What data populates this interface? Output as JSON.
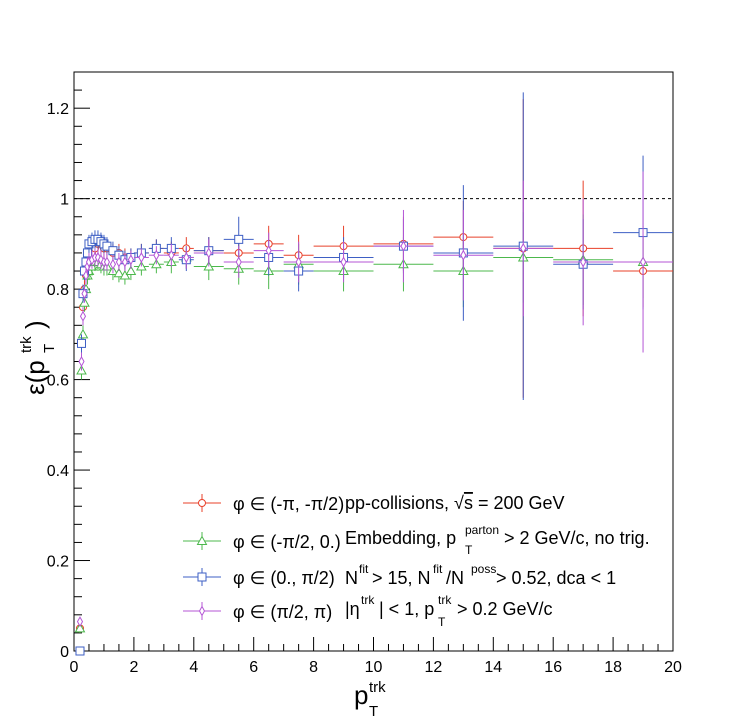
{
  "chart_data": {
    "type": "scatter",
    "xlabel": "p",
    "xlabel_sup": "trk",
    "xlabel_sub": "T",
    "ylabel_prefix": "ε(p",
    "ylabel_sup": "trk",
    "ylabel_sub": "T",
    "ylabel_suffix": ")",
    "xlim": [
      0,
      20
    ],
    "ylim": [
      0,
      1.28
    ],
    "xticks": [
      0,
      2,
      4,
      6,
      8,
      10,
      12,
      14,
      16,
      18,
      20
    ],
    "yticks": [
      0,
      0.2,
      0.4,
      0.6,
      0.8,
      1,
      1.2
    ],
    "xtick_labels": [
      "0",
      "2",
      "4",
      "6",
      "8",
      "10",
      "12",
      "14",
      "16",
      "18",
      "20"
    ],
    "ytick_labels": [
      "0",
      "0.2",
      "0.4",
      "0.6",
      "0.8",
      "1",
      "1.2"
    ],
    "reference_line": 1,
    "legend_position": "bottom-center",
    "series": [
      {
        "name": "φ ∈ (-π, -π/2)",
        "color": "#e8402a",
        "marker": "circle",
        "points": [
          {
            "x": 0.2,
            "y": 0.05,
            "xerr": 0.05,
            "yerr": 0.01
          },
          {
            "x": 0.25,
            "y": 0.68,
            "xerr": 0.025,
            "yerr": 0.02
          },
          {
            "x": 0.3,
            "y": 0.76,
            "xerr": 0.025,
            "yerr": 0.02
          },
          {
            "x": 0.35,
            "y": 0.8,
            "xerr": 0.025,
            "yerr": 0.02
          },
          {
            "x": 0.4,
            "y": 0.83,
            "xerr": 0.025,
            "yerr": 0.02
          },
          {
            "x": 0.45,
            "y": 0.85,
            "xerr": 0.025,
            "yerr": 0.02
          },
          {
            "x": 0.5,
            "y": 0.87,
            "xerr": 0.025,
            "yerr": 0.02
          },
          {
            "x": 0.6,
            "y": 0.88,
            "xerr": 0.05,
            "yerr": 0.02
          },
          {
            "x": 0.7,
            "y": 0.89,
            "xerr": 0.05,
            "yerr": 0.02
          },
          {
            "x": 0.8,
            "y": 0.9,
            "xerr": 0.05,
            "yerr": 0.02
          },
          {
            "x": 0.9,
            "y": 0.9,
            "xerr": 0.05,
            "yerr": 0.02
          },
          {
            "x": 1.0,
            "y": 0.89,
            "xerr": 0.05,
            "yerr": 0.02
          },
          {
            "x": 1.1,
            "y": 0.89,
            "xerr": 0.05,
            "yerr": 0.02
          },
          {
            "x": 1.3,
            "y": 0.88,
            "xerr": 0.1,
            "yerr": 0.02
          },
          {
            "x": 1.5,
            "y": 0.88,
            "xerr": 0.1,
            "yerr": 0.02
          },
          {
            "x": 1.7,
            "y": 0.87,
            "xerr": 0.1,
            "yerr": 0.02
          },
          {
            "x": 1.9,
            "y": 0.87,
            "xerr": 0.1,
            "yerr": 0.02
          },
          {
            "x": 2.25,
            "y": 0.88,
            "xerr": 0.25,
            "yerr": 0.02
          },
          {
            "x": 2.75,
            "y": 0.89,
            "xerr": 0.25,
            "yerr": 0.02
          },
          {
            "x": 3.25,
            "y": 0.88,
            "xerr": 0.25,
            "yerr": 0.025
          },
          {
            "x": 3.75,
            "y": 0.89,
            "xerr": 0.25,
            "yerr": 0.025
          },
          {
            "x": 4.5,
            "y": 0.885,
            "xerr": 0.5,
            "yerr": 0.03
          },
          {
            "x": 5.5,
            "y": 0.88,
            "xerr": 0.5,
            "yerr": 0.035
          },
          {
            "x": 6.5,
            "y": 0.9,
            "xerr": 0.5,
            "yerr": 0.04
          },
          {
            "x": 7.5,
            "y": 0.875,
            "xerr": 0.5,
            "yerr": 0.045
          },
          {
            "x": 9,
            "y": 0.895,
            "xerr": 1,
            "yerr": 0.045
          },
          {
            "x": 11,
            "y": 0.9,
            "xerr": 1,
            "yerr": 0.06
          },
          {
            "x": 13,
            "y": 0.915,
            "xerr": 1,
            "yerr": 0.08
          },
          {
            "x": 15,
            "y": 0.89,
            "xerr": 1,
            "yerr": 0.33
          },
          {
            "x": 17,
            "y": 0.89,
            "xerr": 1,
            "yerr": 0.15
          },
          {
            "x": 19,
            "y": 0.84,
            "xerr": 1,
            "yerr": 0.08
          }
        ]
      },
      {
        "name": "φ ∈ (-π/2, 0.)",
        "color": "#4cb84c",
        "marker": "triangle",
        "points": [
          {
            "x": 0.2,
            "y": 0.05,
            "xerr": 0.05,
            "yerr": 0.01
          },
          {
            "x": 0.25,
            "y": 0.62,
            "xerr": 0.025,
            "yerr": 0.02
          },
          {
            "x": 0.3,
            "y": 0.7,
            "xerr": 0.025,
            "yerr": 0.02
          },
          {
            "x": 0.35,
            "y": 0.77,
            "xerr": 0.025,
            "yerr": 0.02
          },
          {
            "x": 0.4,
            "y": 0.8,
            "xerr": 0.025,
            "yerr": 0.02
          },
          {
            "x": 0.45,
            "y": 0.83,
            "xerr": 0.025,
            "yerr": 0.02
          },
          {
            "x": 0.5,
            "y": 0.84,
            "xerr": 0.025,
            "yerr": 0.02
          },
          {
            "x": 0.6,
            "y": 0.85,
            "xerr": 0.05,
            "yerr": 0.02
          },
          {
            "x": 0.7,
            "y": 0.86,
            "xerr": 0.05,
            "yerr": 0.02
          },
          {
            "x": 0.8,
            "y": 0.86,
            "xerr": 0.05,
            "yerr": 0.02
          },
          {
            "x": 0.9,
            "y": 0.855,
            "xerr": 0.05,
            "yerr": 0.02
          },
          {
            "x": 1.0,
            "y": 0.85,
            "xerr": 0.05,
            "yerr": 0.02
          },
          {
            "x": 1.1,
            "y": 0.85,
            "xerr": 0.05,
            "yerr": 0.02
          },
          {
            "x": 1.3,
            "y": 0.84,
            "xerr": 0.1,
            "yerr": 0.02
          },
          {
            "x": 1.5,
            "y": 0.835,
            "xerr": 0.1,
            "yerr": 0.02
          },
          {
            "x": 1.7,
            "y": 0.83,
            "xerr": 0.1,
            "yerr": 0.02
          },
          {
            "x": 1.9,
            "y": 0.84,
            "xerr": 0.1,
            "yerr": 0.02
          },
          {
            "x": 2.25,
            "y": 0.85,
            "xerr": 0.25,
            "yerr": 0.02
          },
          {
            "x": 2.75,
            "y": 0.855,
            "xerr": 0.25,
            "yerr": 0.02
          },
          {
            "x": 3.25,
            "y": 0.86,
            "xerr": 0.25,
            "yerr": 0.025
          },
          {
            "x": 3.75,
            "y": 0.87,
            "xerr": 0.25,
            "yerr": 0.025
          },
          {
            "x": 4.5,
            "y": 0.85,
            "xerr": 0.5,
            "yerr": 0.03
          },
          {
            "x": 5.5,
            "y": 0.845,
            "xerr": 0.5,
            "yerr": 0.035
          },
          {
            "x": 6.5,
            "y": 0.84,
            "xerr": 0.5,
            "yerr": 0.04
          },
          {
            "x": 7.5,
            "y": 0.855,
            "xerr": 0.5,
            "yerr": 0.045
          },
          {
            "x": 9,
            "y": 0.84,
            "xerr": 1,
            "yerr": 0.045
          },
          {
            "x": 11,
            "y": 0.855,
            "xerr": 1,
            "yerr": 0.06
          },
          {
            "x": 13,
            "y": 0.84,
            "xerr": 1,
            "yerr": 0.08
          },
          {
            "x": 15,
            "y": 0.87,
            "xerr": 1,
            "yerr": 0.1
          },
          {
            "x": 17,
            "y": 0.865,
            "xerr": 1,
            "yerr": 0.1
          },
          {
            "x": 19,
            "y": 0.86,
            "xerr": 1,
            "yerr": 0.08
          }
        ]
      },
      {
        "name": "φ ∈ (0., π/2)",
        "color": "#3e5fc4",
        "marker": "square",
        "points": [
          {
            "x": 0.2,
            "y": 0.0,
            "xerr": 0.05,
            "yerr": 0.005
          },
          {
            "x": 0.25,
            "y": 0.68,
            "xerr": 0.025,
            "yerr": 0.02
          },
          {
            "x": 0.3,
            "y": 0.79,
            "xerr": 0.025,
            "yerr": 0.02
          },
          {
            "x": 0.35,
            "y": 0.84,
            "xerr": 0.025,
            "yerr": 0.02
          },
          {
            "x": 0.4,
            "y": 0.86,
            "xerr": 0.025,
            "yerr": 0.02
          },
          {
            "x": 0.45,
            "y": 0.88,
            "xerr": 0.025,
            "yerr": 0.02
          },
          {
            "x": 0.5,
            "y": 0.9,
            "xerr": 0.025,
            "yerr": 0.02
          },
          {
            "x": 0.6,
            "y": 0.905,
            "xerr": 0.05,
            "yerr": 0.02
          },
          {
            "x": 0.7,
            "y": 0.91,
            "xerr": 0.05,
            "yerr": 0.02
          },
          {
            "x": 0.8,
            "y": 0.91,
            "xerr": 0.05,
            "yerr": 0.02
          },
          {
            "x": 0.9,
            "y": 0.905,
            "xerr": 0.05,
            "yerr": 0.02
          },
          {
            "x": 1.0,
            "y": 0.9,
            "xerr": 0.05,
            "yerr": 0.02
          },
          {
            "x": 1.1,
            "y": 0.895,
            "xerr": 0.05,
            "yerr": 0.02
          },
          {
            "x": 1.3,
            "y": 0.885,
            "xerr": 0.1,
            "yerr": 0.02
          },
          {
            "x": 1.5,
            "y": 0.875,
            "xerr": 0.1,
            "yerr": 0.02
          },
          {
            "x": 1.7,
            "y": 0.865,
            "xerr": 0.1,
            "yerr": 0.02
          },
          {
            "x": 1.9,
            "y": 0.87,
            "xerr": 0.1,
            "yerr": 0.02
          },
          {
            "x": 2.25,
            "y": 0.88,
            "xerr": 0.25,
            "yerr": 0.02
          },
          {
            "x": 2.75,
            "y": 0.89,
            "xerr": 0.25,
            "yerr": 0.02
          },
          {
            "x": 3.25,
            "y": 0.89,
            "xerr": 0.25,
            "yerr": 0.025
          },
          {
            "x": 3.75,
            "y": 0.865,
            "xerr": 0.25,
            "yerr": 0.025
          },
          {
            "x": 4.5,
            "y": 0.885,
            "xerr": 0.5,
            "yerr": 0.03
          },
          {
            "x": 5.5,
            "y": 0.91,
            "xerr": 0.5,
            "yerr": 0.05
          },
          {
            "x": 6.5,
            "y": 0.87,
            "xerr": 0.5,
            "yerr": 0.04
          },
          {
            "x": 7.5,
            "y": 0.84,
            "xerr": 0.5,
            "yerr": 0.045
          },
          {
            "x": 9,
            "y": 0.87,
            "xerr": 1,
            "yerr": 0.045
          },
          {
            "x": 11,
            "y": 0.895,
            "xerr": 1,
            "yerr": 0.06
          },
          {
            "x": 13,
            "y": 0.88,
            "xerr": 1,
            "yerr": 0.15
          },
          {
            "x": 15,
            "y": 0.895,
            "xerr": 1,
            "yerr": 0.34
          },
          {
            "x": 17,
            "y": 0.855,
            "xerr": 1,
            "yerr": 0.1
          },
          {
            "x": 19,
            "y": 0.925,
            "xerr": 1,
            "yerr": 0.17
          }
        ]
      },
      {
        "name": "φ ∈ (π/2, π)",
        "color": "#b455d6",
        "marker": "diamond",
        "points": [
          {
            "x": 0.2,
            "y": 0.065,
            "xerr": 0.05,
            "yerr": 0.01
          },
          {
            "x": 0.25,
            "y": 0.64,
            "xerr": 0.025,
            "yerr": 0.02
          },
          {
            "x": 0.3,
            "y": 0.74,
            "xerr": 0.025,
            "yerr": 0.02
          },
          {
            "x": 0.35,
            "y": 0.79,
            "xerr": 0.025,
            "yerr": 0.02
          },
          {
            "x": 0.4,
            "y": 0.83,
            "xerr": 0.025,
            "yerr": 0.02
          },
          {
            "x": 0.45,
            "y": 0.85,
            "xerr": 0.025,
            "yerr": 0.02
          },
          {
            "x": 0.5,
            "y": 0.86,
            "xerr": 0.025,
            "yerr": 0.02
          },
          {
            "x": 0.6,
            "y": 0.865,
            "xerr": 0.05,
            "yerr": 0.02
          },
          {
            "x": 0.7,
            "y": 0.87,
            "xerr": 0.05,
            "yerr": 0.02
          },
          {
            "x": 0.8,
            "y": 0.87,
            "xerr": 0.05,
            "yerr": 0.02
          },
          {
            "x": 0.9,
            "y": 0.865,
            "xerr": 0.05,
            "yerr": 0.02
          },
          {
            "x": 1.0,
            "y": 0.86,
            "xerr": 0.05,
            "yerr": 0.02
          },
          {
            "x": 1.1,
            "y": 0.86,
            "xerr": 0.05,
            "yerr": 0.02
          },
          {
            "x": 1.3,
            "y": 0.855,
            "xerr": 0.1,
            "yerr": 0.02
          },
          {
            "x": 1.5,
            "y": 0.86,
            "xerr": 0.1,
            "yerr": 0.02
          },
          {
            "x": 1.7,
            "y": 0.86,
            "xerr": 0.1,
            "yerr": 0.02
          },
          {
            "x": 1.9,
            "y": 0.865,
            "xerr": 0.1,
            "yerr": 0.02
          },
          {
            "x": 2.25,
            "y": 0.87,
            "xerr": 0.25,
            "yerr": 0.02
          },
          {
            "x": 2.75,
            "y": 0.875,
            "xerr": 0.25,
            "yerr": 0.02
          },
          {
            "x": 3.25,
            "y": 0.875,
            "xerr": 0.25,
            "yerr": 0.025
          },
          {
            "x": 3.75,
            "y": 0.87,
            "xerr": 0.25,
            "yerr": 0.025
          },
          {
            "x": 4.5,
            "y": 0.88,
            "xerr": 0.5,
            "yerr": 0.03
          },
          {
            "x": 5.5,
            "y": 0.86,
            "xerr": 0.5,
            "yerr": 0.035
          },
          {
            "x": 6.5,
            "y": 0.885,
            "xerr": 0.5,
            "yerr": 0.04
          },
          {
            "x": 7.5,
            "y": 0.86,
            "xerr": 0.5,
            "yerr": 0.045
          },
          {
            "x": 9,
            "y": 0.86,
            "xerr": 1,
            "yerr": 0.045
          },
          {
            "x": 11,
            "y": 0.895,
            "xerr": 1,
            "yerr": 0.08
          },
          {
            "x": 13,
            "y": 0.875,
            "xerr": 1,
            "yerr": 0.1
          },
          {
            "x": 15,
            "y": 0.89,
            "xerr": 1,
            "yerr": 0.15
          },
          {
            "x": 17,
            "y": 0.86,
            "xerr": 1,
            "yerr": 0.14
          },
          {
            "x": 19,
            "y": 0.86,
            "xerr": 1,
            "yerr": 0.2
          }
        ]
      }
    ],
    "legend_entries": [
      {
        "label": "φ ∈ (-π, -π/2)",
        "series_index": 0
      },
      {
        "label": "φ ∈ (-π/2, 0.)",
        "series_index": 1
      },
      {
        "label": "φ ∈ (0., π/2)",
        "series_index": 2
      },
      {
        "label": "φ ∈ (π/2, π)",
        "series_index": 3
      }
    ],
    "annotations": {
      "line1_a": "pp-collisions, ",
      "line1_sqrt": "√",
      "line1_s": "s",
      "line1_b": " = 200 GeV",
      "line2_a": "Embedding, p",
      "line2_sup": "parton",
      "line2_sub": "T",
      "line2_b": " > 2 GeV/c, no trig.",
      "line3_a": "N",
      "line3_sup1": "fit",
      "line3_b": " > 15, N",
      "line3_sup2": "fit",
      "line3_c": "/N",
      "line3_sup3": "poss",
      "line3_d": " > 0.52, dca < 1",
      "line4_a": "|η",
      "line4_sup1": "trk",
      "line4_b": "| < 1, p",
      "line4_sup2": "trk",
      "line4_sub": "T",
      "line4_c": " > 0.2 GeV/c"
    }
  }
}
